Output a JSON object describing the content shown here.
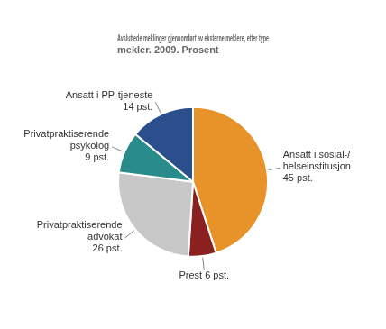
{
  "chart_data": {
    "type": "pie",
    "title": "Avsluttede meklinger gjennomført av eksterne meklere, etter type\nmekler. 2009. Prosent",
    "categories": [
      "Ansatt i sosial-/\nhelseinstitusjon\n45 pst.",
      "Prest 6 pst.",
      "Privatpraktiserende\nadvokat\n26 pst.",
      "Privatpraktiserende\npsykolog\n9 pst.",
      "Ansatt i PP-tjeneste\n14 pst."
    ],
    "values": [
      45,
      6,
      26,
      9,
      14
    ],
    "colors": [
      "#E8922A",
      "#8B2020",
      "#C8C8C8",
      "#2A8B8B",
      "#2B4E8C"
    ]
  }
}
